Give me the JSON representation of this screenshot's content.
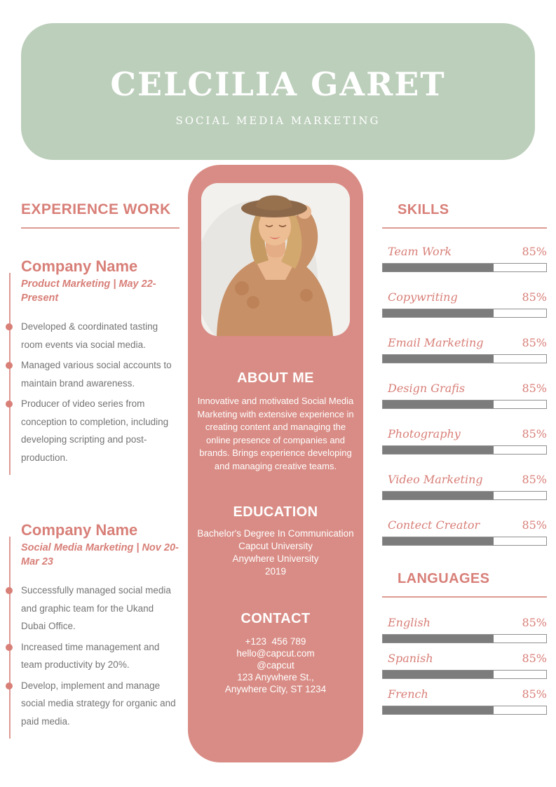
{
  "header": {
    "name": "CELCILIA GARET",
    "subtitle": "SOCIAL MEDIA MARKETING"
  },
  "experience": {
    "heading": "EXPERIENCE WORK",
    "jobs": [
      {
        "company": "Company Name",
        "meta": "Product Marketing | May 22-Present",
        "bullets": [
          "Developed & coordinated tasting room events via social media.",
          "Managed various social accounts to maintain brand awareness.",
          "Producer of video series from conception to completion, including developing scripting and post-production."
        ]
      },
      {
        "company": "Company Name",
        "meta": "Social Media Marketing | Nov 20-Mar 23",
        "bullets": [
          "Successfully managed social media and graphic team for the Ukand Dubai Office.",
          "Increased time management and team productivity by 20%.",
          "Develop, implement and manage social media strategy for organic and paid media."
        ]
      }
    ]
  },
  "about": {
    "heading": "ABOUT ME",
    "text": "Innovative and motivated Social Media Marketing with extensive experience in creating content and managing the online presence of companies and brands. Brings experience developing and managing creative teams."
  },
  "education": {
    "heading": "EDUCATION",
    "lines": [
      "Bachelor's Degree In Communication",
      "Capcut University",
      "Anywhere University",
      "2019"
    ]
  },
  "contact": {
    "heading": "CONTACT",
    "lines": [
      "+123  456 789",
      "hello@capcut.com",
      "@capcut",
      "123 Anywhere St.,",
      "Anywhere City, ST 1234"
    ]
  },
  "skills": {
    "heading": "SKILLS",
    "items": [
      {
        "label": "Team Work",
        "value": "85%",
        "bar_fill": 68
      },
      {
        "label": "Copywriting",
        "value": "85%",
        "bar_fill": 68
      },
      {
        "label": "Email Marketing",
        "value": "85%",
        "bar_fill": 68
      },
      {
        "label": "Design Grafis",
        "value": "85%",
        "bar_fill": 68
      },
      {
        "label": "Photography",
        "value": "85%",
        "bar_fill": 68
      },
      {
        "label": "Video Marketing",
        "value": "85%",
        "bar_fill": 68
      },
      {
        "label": "Contect Creator",
        "value": "85%",
        "bar_fill": 68
      }
    ]
  },
  "languages": {
    "heading": "LANGUAGES",
    "items": [
      {
        "label": "English",
        "value": "85%",
        "bar_fill": 68
      },
      {
        "label": "Spanish",
        "value": "85%",
        "bar_fill": 68
      },
      {
        "label": "French",
        "value": "85%",
        "bar_fill": 68
      }
    ]
  },
  "colors": {
    "header_bg": "#bccfbb",
    "panel_bg": "#d98c85",
    "accent": "#d87f78",
    "accent_soft": "#dd9a93",
    "bar_fill": "#7c7c7c",
    "bar_border": "#8f8f8f",
    "text_gray": "#747474"
  }
}
